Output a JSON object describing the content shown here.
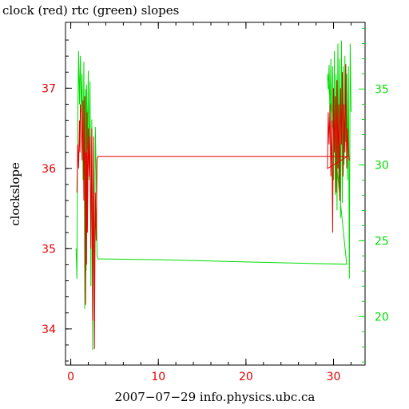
{
  "chart_data": {
    "type": "line",
    "title": "clock (red) rtc (green) slopes",
    "xlabel": "2007−07−29 info.physics.ubc.ca",
    "ylabel": "clockslope",
    "grid": false,
    "xlim": [
      -0.6,
      33.6
    ],
    "ylim_left": [
      33.55,
      37.82
    ],
    "ylim_right": [
      16.8,
      39.4
    ],
    "x_ticks": [
      "0",
      "10",
      "20",
      "30"
    ],
    "y_ticks_left": [
      "34",
      "35",
      "36",
      "37"
    ],
    "y_ticks_right": [
      "20",
      "25",
      "30",
      "35"
    ],
    "colors": {
      "clock": "#e60000",
      "rtc": "#00dd00",
      "axes": "#000000"
    },
    "series": [
      {
        "name": "clock",
        "axis": "left",
        "color": "#e60000",
        "x": [
          0.7,
          0.8,
          0.9,
          1.0,
          1.05,
          1.1,
          1.2,
          1.3,
          1.4,
          1.5,
          1.6,
          1.7,
          1.75,
          1.8,
          1.85,
          1.9,
          2.0,
          2.1,
          2.2,
          2.3,
          2.4,
          2.5,
          2.6,
          2.7,
          2.8,
          2.9,
          3.0,
          3.1,
          3.2,
          3.3,
          3.4,
          31.6,
          29.3,
          29.4,
          29.5,
          29.6,
          29.7,
          29.8,
          29.9,
          30.0,
          30.1,
          30.2,
          30.3,
          30.4,
          30.5,
          30.6,
          30.7,
          30.8,
          30.9,
          31.0,
          31.1,
          31.2,
          31.3,
          31.4,
          31.5,
          31.6,
          31.7,
          31.8
        ],
        "y": [
          35.7,
          36.3,
          36.0,
          36.6,
          36.2,
          36.8,
          36.7,
          36.1,
          36.85,
          35.6,
          36.9,
          34.3,
          36.2,
          34.8,
          36.7,
          35.2,
          36.5,
          35.9,
          36.4,
          35.0,
          36.5,
          34.1,
          36.4,
          33.75,
          35.7,
          35.1,
          36.1,
          36.15,
          36.15,
          36.15,
          36.15,
          36.15,
          36.0,
          36.7,
          36.3,
          36.8,
          35.9,
          36.6,
          35.2,
          37.0,
          36.2,
          36.9,
          35.7,
          37.1,
          36.0,
          36.8,
          35.6,
          37.0,
          36.3,
          37.2,
          35.9,
          36.8,
          36.2,
          37.3,
          36.0,
          36.5,
          36.2,
          36.1
        ]
      },
      {
        "name": "rtc",
        "axis": "right",
        "color": "#00dd00",
        "x": [
          0.6,
          0.7,
          0.75,
          0.8,
          0.9,
          1.0,
          1.1,
          1.2,
          1.3,
          1.4,
          1.5,
          1.6,
          1.7,
          1.75,
          1.8,
          1.9,
          2.0,
          2.1,
          2.2,
          2.3,
          2.4,
          2.5,
          2.6,
          2.7,
          2.75,
          2.8,
          2.9,
          3.0,
          3.1,
          3.2,
          3.3,
          3.4,
          10.0,
          20.0,
          31.5,
          29.3,
          29.4,
          29.5,
          29.6,
          29.7,
          29.8,
          29.9,
          30.0,
          30.1,
          30.2,
          30.3,
          30.4,
          30.5,
          30.6,
          30.7,
          30.8,
          30.9,
          31.0,
          31.1,
          31.2,
          31.3,
          31.4,
          31.5,
          31.6,
          31.7,
          31.8,
          31.9,
          32.0
        ],
        "y": [
          24.5,
          22.5,
          28.0,
          33.0,
          37.5,
          34.0,
          37.2,
          33.5,
          36.0,
          29.0,
          36.8,
          20.5,
          35.0,
          23.0,
          35.3,
          31.0,
          36.2,
          29.0,
          35.5,
          22.0,
          33.0,
          17.8,
          31.0,
          20.0,
          26.0,
          32.5,
          29.5,
          24.0,
          23.8,
          23.8,
          23.8,
          23.8,
          23.75,
          23.6,
          23.45,
          36.0,
          35.0,
          36.6,
          33.0,
          37.0,
          31.0,
          36.5,
          29.0,
          37.5,
          28.0,
          36.0,
          27.0,
          38.0,
          28.5,
          37.0,
          26.5,
          38.2,
          27.5,
          36.5,
          30.0,
          37.2,
          31.5,
          36.0,
          29.0,
          36.5,
          22.5,
          38.0,
          33.5
        ]
      }
    ]
  }
}
